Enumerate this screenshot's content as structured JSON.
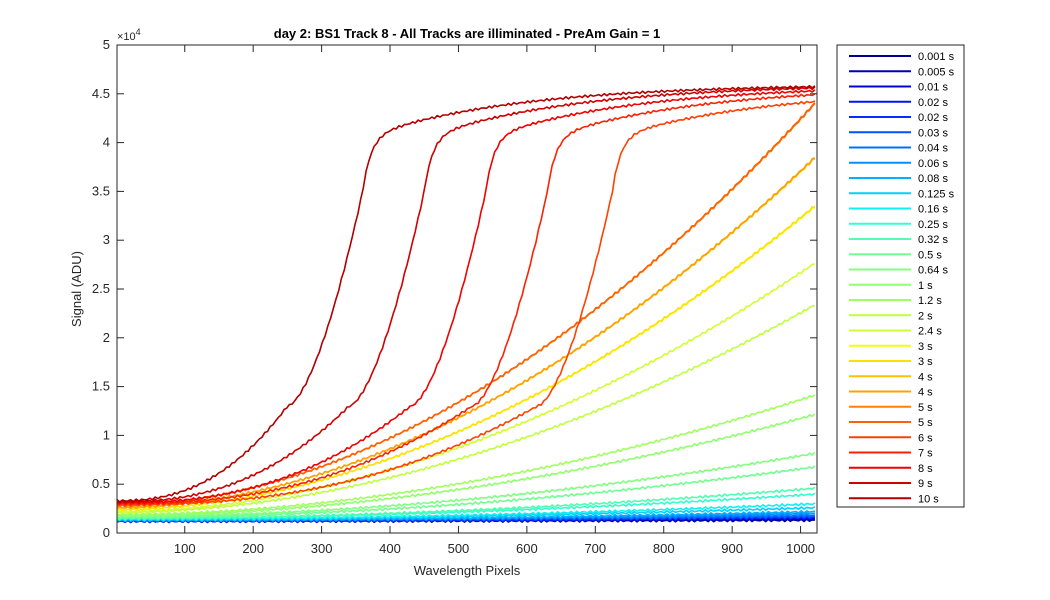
{
  "chart_data": {
    "type": "line",
    "title": "day 2: BS1  Track 8 - All Tracks are illiminated - PreAm Gain = 1",
    "xlabel": "Wavelength Pixels",
    "ylabel": "Signal (ADU)",
    "xlim": [
      1,
      1024
    ],
    "ylim": [
      0,
      5
    ],
    "y_multiplier_base": "×10",
    "y_multiplier_exp": "4",
    "xticks": [
      "100",
      "200",
      "300",
      "400",
      "500",
      "600",
      "700",
      "800",
      "900",
      "1000"
    ],
    "yticks": [
      "0",
      "0.5",
      "1",
      "1.5",
      "2",
      "2.5",
      "3",
      "3.5",
      "4",
      "4.5",
      "5"
    ],
    "legend_position": "outside-right",
    "series": [
      {
        "name": "0.001 s",
        "color": "#000090",
        "start": 0.12,
        "end": 0.13,
        "sat_x": null
      },
      {
        "name": "0.005 s",
        "color": "#0000b0",
        "start": 0.12,
        "end": 0.14,
        "sat_x": null
      },
      {
        "name": "0.01 s",
        "color": "#0000dc",
        "start": 0.12,
        "end": 0.15,
        "sat_x": null
      },
      {
        "name": "0.02 s",
        "color": "#0010ff",
        "start": 0.12,
        "end": 0.16,
        "sat_x": null
      },
      {
        "name": "0.02 s",
        "color": "#0030ff",
        "start": 0.12,
        "end": 0.16,
        "sat_x": null
      },
      {
        "name": "0.03 s",
        "color": "#0050ff",
        "start": 0.13,
        "end": 0.17,
        "sat_x": null
      },
      {
        "name": "0.04 s",
        "color": "#0070ff",
        "start": 0.13,
        "end": 0.18,
        "sat_x": null
      },
      {
        "name": "0.06 s",
        "color": "#0090ff",
        "start": 0.13,
        "end": 0.2,
        "sat_x": null
      },
      {
        "name": "0.08 s",
        "color": "#00b0ff",
        "start": 0.13,
        "end": 0.22,
        "sat_x": null
      },
      {
        "name": "0.125 s",
        "color": "#00d0ff",
        "start": 0.14,
        "end": 0.26,
        "sat_x": null
      },
      {
        "name": "0.16 s",
        "color": "#10f0ef",
        "start": 0.14,
        "end": 0.3,
        "sat_x": null
      },
      {
        "name": "0.25 s",
        "color": "#30ffcf",
        "start": 0.15,
        "end": 0.4,
        "sat_x": null
      },
      {
        "name": "0.32 s",
        "color": "#50ffaf",
        "start": 0.15,
        "end": 0.46,
        "sat_x": null
      },
      {
        "name": "0.5 s",
        "color": "#70ff90",
        "start": 0.16,
        "end": 0.68,
        "sat_x": null
      },
      {
        "name": "0.64 s",
        "color": "#80ff80",
        "start": 0.17,
        "end": 0.82,
        "sat_x": null
      },
      {
        "name": "1 s",
        "color": "#90ff70",
        "start": 0.18,
        "end": 1.22,
        "sat_x": null
      },
      {
        "name": "1.2 s",
        "color": "#a0ff60",
        "start": 0.19,
        "end": 1.42,
        "sat_x": null
      },
      {
        "name": "2 s",
        "color": "#c0ff40",
        "start": 0.21,
        "end": 2.35,
        "sat_x": null
      },
      {
        "name": "2.4 s",
        "color": "#d0ff30",
        "start": 0.22,
        "end": 2.78,
        "sat_x": null
      },
      {
        "name": "3 s",
        "color": "#f0ff10",
        "start": 0.24,
        "end": 3.36,
        "sat_x": null
      },
      {
        "name": "3 s",
        "color": "#ffe000",
        "start": 0.24,
        "end": 3.37,
        "sat_x": null
      },
      {
        "name": "4 s",
        "color": "#ffc000",
        "start": 0.26,
        "end": 3.86,
        "sat_x": null
      },
      {
        "name": "4 s",
        "color": "#ffa000",
        "start": 0.26,
        "end": 3.87,
        "sat_x": null
      },
      {
        "name": "5 s",
        "color": "#ff8000",
        "start": 0.28,
        "end": 4.42,
        "sat_x": null
      },
      {
        "name": "5 s",
        "color": "#ff6000",
        "start": 0.28,
        "end": 4.43,
        "sat_x": null
      },
      {
        "name": "6 s",
        "color": "#ff4000",
        "start": 0.29,
        "end": 4.55,
        "sat_x": 725
      },
      {
        "name": "7 s",
        "color": "#ff2000",
        "start": 0.3,
        "end": 4.58,
        "sat_x": 630
      },
      {
        "name": "8 s",
        "color": "#f00000",
        "start": 0.31,
        "end": 4.59,
        "sat_x": 540
      },
      {
        "name": "9 s",
        "color": "#d00000",
        "start": 0.32,
        "end": 4.6,
        "sat_x": 450
      },
      {
        "name": "10 s",
        "color": "#b00000",
        "start": 0.33,
        "end": 4.6,
        "sat_x": 360
      }
    ]
  }
}
